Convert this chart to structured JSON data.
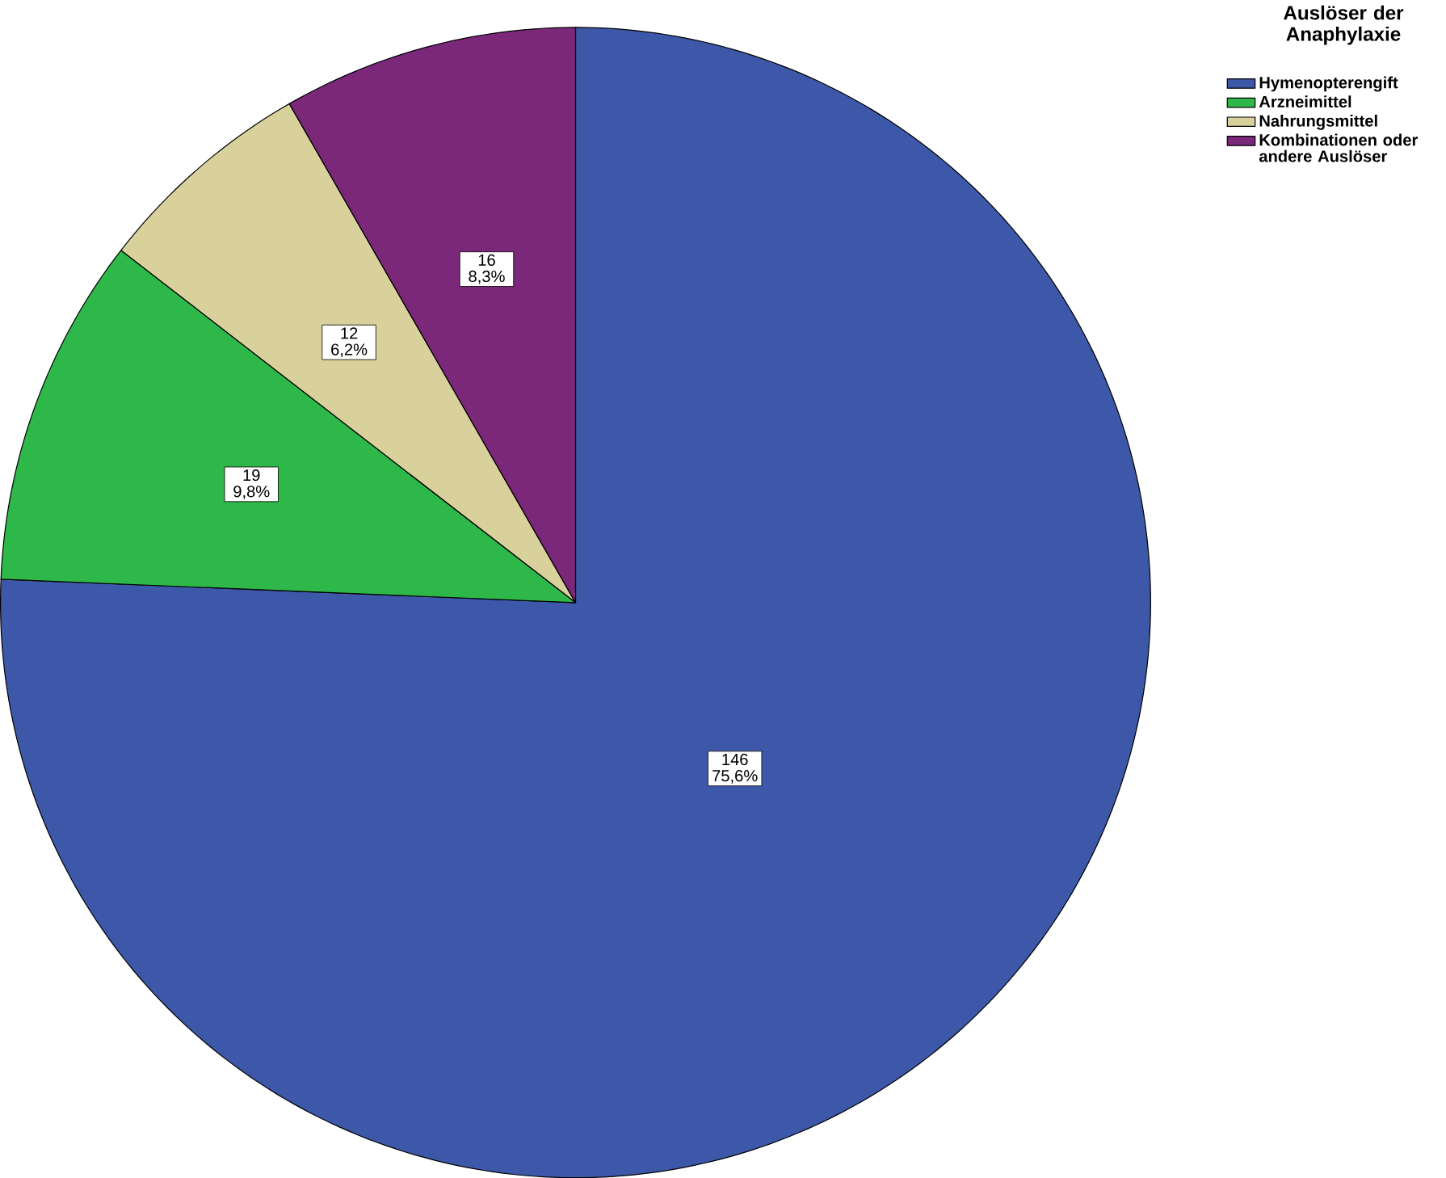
{
  "chart_data": {
    "type": "pie",
    "legend_title": "Auslöser der Anaphylaxie",
    "categories": [
      "Hymenopterengift",
      "Arzneimittel",
      "Nahrungsmittel",
      "Kombinationen oder andere Auslöser"
    ],
    "values": [
      146,
      19,
      12,
      16
    ],
    "colors": [
      "#3d58a8",
      "#2fb84a",
      "#d9d19c",
      "#7b287a"
    ],
    "value_labels": [
      "146 75,6%",
      "19 9,8%",
      "12 6,2%",
      "16 8,3%"
    ],
    "legend": "top right"
  }
}
